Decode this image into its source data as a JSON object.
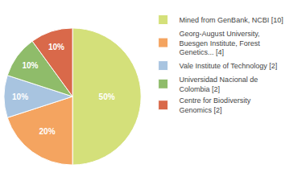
{
  "chart_data": {
    "type": "pie",
    "categories": [
      "Mined from GenBank, NCBI [10]",
      "Georg-August University,\nBuesgen Institute, Forest\nGenetics... [4]",
      "Vale Institute of Technology [2]",
      "Universidad Nacional de\nColombia [2]",
      "Centre for Biodiversity\nGenomics [2]"
    ],
    "values": [
      50,
      20,
      10,
      10,
      10
    ],
    "value_labels": [
      "50%",
      "20%",
      "10%",
      "10%",
      "10%"
    ],
    "colors": [
      "#d4e07a",
      "#f4a460",
      "#a8c4e0",
      "#8fbc6a",
      "#d9694a"
    ],
    "data_labels": true,
    "legend": "right"
  }
}
